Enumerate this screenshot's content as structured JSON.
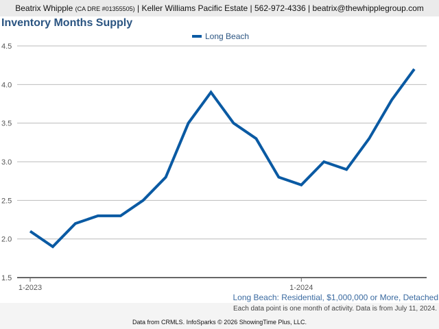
{
  "header": {
    "name": "Beatrix Whipple",
    "license": "(CA DRE #01355505)",
    "rest": "| Keller Williams Pacific Estate | 562-972-4336 | beatrix@thewhipplegroup.com"
  },
  "footer": {
    "subtitle": "Long Beach: Residential, $1,000,000 or More, Detached",
    "note": "Each data point is one month of activity. Data is from July 11, 2024.",
    "credit": "Data from CRMLS. InfoSparks © 2026 ShowingTime Plus, LLC."
  },
  "chart_data": {
    "type": "line",
    "title": "Inventory Months Supply",
    "xlabel": "",
    "ylabel": "",
    "x": [
      "1-2023",
      "2-2023",
      "3-2023",
      "4-2023",
      "5-2023",
      "6-2023",
      "7-2023",
      "8-2023",
      "9-2023",
      "10-2023",
      "11-2023",
      "12-2023",
      "1-2024",
      "2-2024",
      "3-2024",
      "4-2024",
      "5-2024",
      "6-2024"
    ],
    "x_tick_labels": [
      "1-2023",
      "1-2024"
    ],
    "x_tick_indices": [
      0,
      12
    ],
    "ylim": [
      1.5,
      4.5
    ],
    "y_ticks": [
      "1.5",
      "2.0",
      "2.5",
      "3.0",
      "3.5",
      "4.0",
      "4.5"
    ],
    "grid": true,
    "legend_position": "top-center",
    "series": [
      {
        "name": "Long Beach",
        "color": "#0a5aa3",
        "values": [
          2.1,
          1.9,
          2.2,
          2.3,
          2.3,
          2.5,
          2.8,
          3.5,
          3.9,
          3.5,
          3.3,
          2.8,
          2.7,
          3.0,
          2.9,
          3.3,
          3.8,
          4.2
        ]
      }
    ]
  }
}
